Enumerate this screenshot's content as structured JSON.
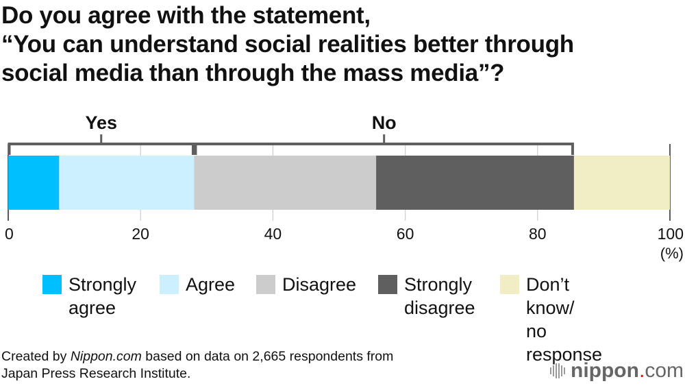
{
  "title_lines": [
    "Do you agree with the statement,",
    "“You can understand social realities better through",
    "social media than through the mass media”?"
  ],
  "chart_data": {
    "type": "bar",
    "orientation": "horizontal-stacked",
    "categories": [
      "Strongly agree",
      "Agree",
      "Disagree",
      "Strongly disagree",
      "Don’t know/ no response"
    ],
    "values": [
      7.7,
      20.4,
      27.5,
      29.9,
      14.5
    ],
    "colors": [
      "#00bfff",
      "#ccf0ff",
      "#cccccc",
      "#5f5f5f",
      "#f1eec6"
    ],
    "groups": [
      {
        "label": "Yes",
        "members": [
          0,
          1
        ]
      },
      {
        "label": "No",
        "members": [
          2,
          3
        ]
      }
    ],
    "xlim": [
      0,
      100
    ],
    "xticks": [
      "0",
      "20",
      "40",
      "60",
      "80",
      "100"
    ],
    "xunit": "(%)",
    "grid": true,
    "legend_position": "bottom",
    "legend": [
      {
        "lines": [
          "Strongly",
          "agree"
        ]
      },
      {
        "lines": [
          "Agree"
        ]
      },
      {
        "lines": [
          "Disagree"
        ]
      },
      {
        "lines": [
          "Strongly",
          "disagree"
        ]
      },
      {
        "lines": [
          "Don’t know/",
          "no response"
        ]
      }
    ]
  },
  "source": {
    "prefix": "Created by ",
    "site": "Nippon.com",
    "rest": " based on data on 2,665 respondents from",
    "line2": "Japan Press Research Institute."
  },
  "logo": {
    "name": "nippon",
    "dot": ".",
    "tld": "com"
  }
}
